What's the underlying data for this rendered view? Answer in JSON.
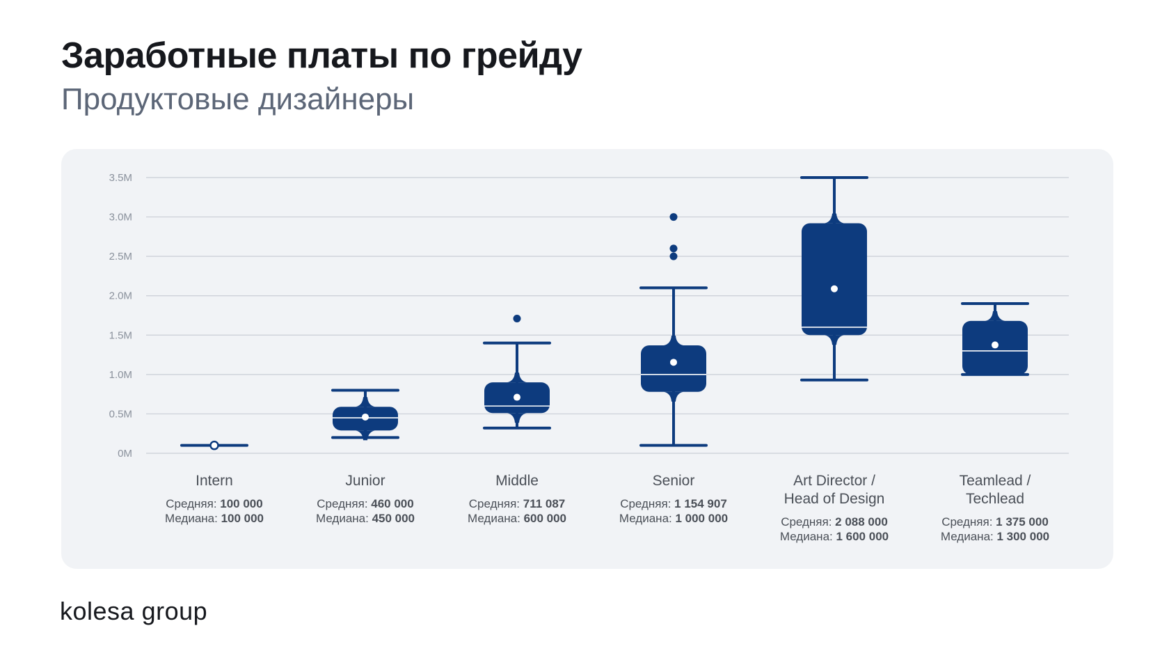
{
  "header": {
    "title": "Заработные платы по грейду",
    "subtitle": "Продуктовые дизайнеры"
  },
  "footer": {
    "logo": "kolesa group"
  },
  "colors": {
    "box": "#0d3b7e",
    "grid": "#c9ced6",
    "axis_text": "#8a919c",
    "category_text": "#4a4f57",
    "stats_text": "#4a4f57",
    "card_bg": "#f1f3f6"
  },
  "chart_data": {
    "type": "box",
    "ylim": [
      0,
      3500000
    ],
    "yticks": [
      0,
      500000,
      1000000,
      1500000,
      2000000,
      2500000,
      3000000,
      3500000
    ],
    "ytick_labels": [
      "0M",
      "0.5M",
      "1.0M",
      "1.5M",
      "2.0M",
      "2.5M",
      "3.0M",
      "3.5M"
    ],
    "grid": true,
    "categories": [
      {
        "label_lines": [
          "Intern"
        ],
        "whisker_low": 100000,
        "q1": 100000,
        "median": 100000,
        "q3": 100000,
        "whisker_high": 100000,
        "mean": 100000,
        "outliers": [],
        "mean_label": "Средняя:",
        "mean_text": "100 000",
        "median_label": "Медиана:",
        "median_text": "100 000"
      },
      {
        "label_lines": [
          "Junior"
        ],
        "whisker_low": 200000,
        "q1": 290000,
        "median": 450000,
        "q3": 590000,
        "whisker_high": 800000,
        "mean": 460000,
        "outliers": [],
        "mean_label": "Средняя:",
        "mean_text": "460 000",
        "median_label": "Медиана:",
        "median_text": "450 000"
      },
      {
        "label_lines": [
          "Middle"
        ],
        "whisker_low": 320000,
        "q1": 510000,
        "median": 600000,
        "q3": 900000,
        "whisker_high": 1400000,
        "mean": 711087,
        "outliers": [
          1710000
        ],
        "mean_label": "Средняя:",
        "mean_text": "711 087",
        "median_label": "Медиана:",
        "median_text": "600 000"
      },
      {
        "label_lines": [
          "Senior"
        ],
        "whisker_low": 100000,
        "q1": 780000,
        "median": 1000000,
        "q3": 1370000,
        "whisker_high": 2100000,
        "mean": 1154907,
        "outliers": [
          2500000,
          2600000,
          3000000
        ],
        "mean_label": "Средняя:",
        "mean_text": "1 154 907",
        "median_label": "Медиана:",
        "median_text": "1 000 000"
      },
      {
        "label_lines": [
          "Art Director /",
          "Head of Design"
        ],
        "whisker_low": 930000,
        "q1": 1500000,
        "median": 1600000,
        "q3": 2920000,
        "whisker_high": 3500000,
        "mean": 2088000,
        "outliers": [],
        "mean_label": "Средняя:",
        "mean_text": "2 088 000",
        "median_label": "Медиана:",
        "median_text": "1 600 000"
      },
      {
        "label_lines": [
          "Teamlead /",
          "Techlead"
        ],
        "whisker_low": 1000000,
        "q1": 1000000,
        "median": 1300000,
        "q3": 1680000,
        "whisker_high": 1900000,
        "mean": 1375000,
        "outliers": [],
        "mean_label": "Средняя:",
        "mean_text": "1 375 000",
        "median_label": "Медиана:",
        "median_text": "1 300 000"
      }
    ]
  }
}
